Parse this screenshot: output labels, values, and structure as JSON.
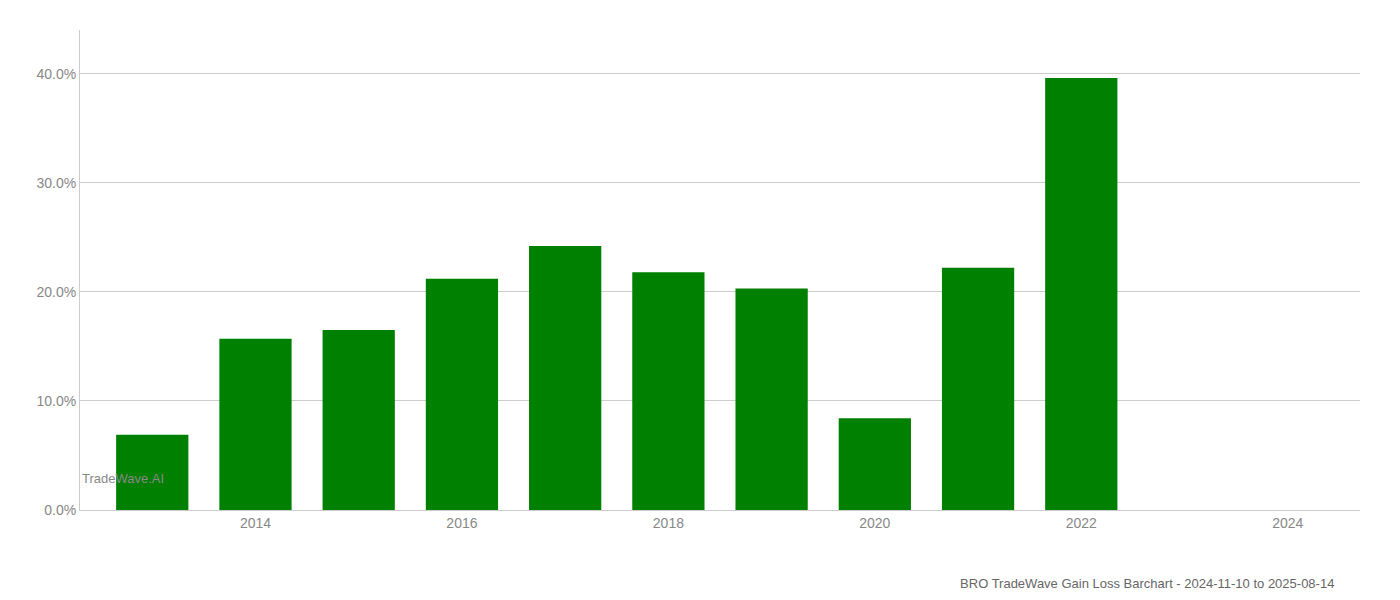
{
  "chart_data": {
    "type": "bar",
    "title": "BRO TradeWave Gain Loss Barchart - 2024-11-10 to 2025-08-14",
    "annotations": [
      "TradeWave.AI"
    ],
    "x": [
      2013,
      2014,
      2015,
      2016,
      2017,
      2018,
      2019,
      2020,
      2021,
      2022
    ],
    "values": [
      0.069,
      0.157,
      0.165,
      0.212,
      0.242,
      0.218,
      0.203,
      0.084,
      0.222,
      0.396
    ],
    "color": "#008000",
    "xlim": [
      2012.3,
      2024.7
    ],
    "xticks": [
      2014,
      2016,
      2018,
      2020,
      2022,
      2024
    ],
    "ylim": [
      0,
      0.44
    ],
    "yticks": [
      {
        "value": 0.0,
        "label": "0.0%"
      },
      {
        "value": 0.1,
        "label": "10.0%"
      },
      {
        "value": 0.2,
        "label": "20.0%"
      },
      {
        "value": 0.3,
        "label": "30.0%"
      },
      {
        "value": 0.4,
        "label": "40.0%"
      }
    ],
    "grid": true
  }
}
